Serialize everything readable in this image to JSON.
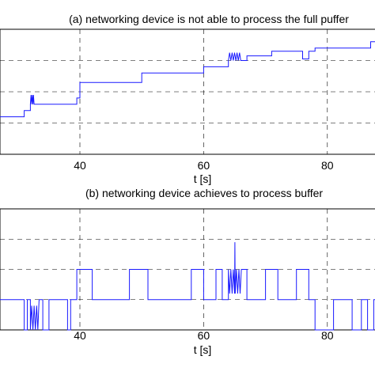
{
  "chart_data": [
    {
      "type": "line",
      "title": "(a) networking device is not able to process the full puffer",
      "xlabel": "t [s]",
      "ylabel": "",
      "xlim": [
        25,
        90
      ],
      "ylim": [
        0,
        4
      ],
      "x_ticks": [
        40,
        60,
        80
      ],
      "y_grid": [
        1,
        2,
        3
      ],
      "grid": true,
      "series": [
        {
          "points": [
            [
              25,
              1.2
            ],
            [
              31,
              1.2
            ],
            [
              31,
              1.4
            ],
            [
              32,
              1.4
            ],
            [
              32,
              1.6
            ],
            [
              32.1,
              1.9
            ],
            [
              32.2,
              1.6
            ],
            [
              32.3,
              1.9
            ],
            [
              32.4,
              1.6
            ],
            [
              32.5,
              1.9
            ],
            [
              32.6,
              1.6
            ],
            [
              39.5,
              1.6
            ],
            [
              39.5,
              1.8
            ],
            [
              40,
              1.8
            ],
            [
              40,
              2.3
            ],
            [
              50,
              2.3
            ],
            [
              50,
              2.6
            ],
            [
              60,
              2.6
            ],
            [
              60,
              2.8
            ],
            [
              64,
              2.8
            ],
            [
              64,
              3.0
            ],
            [
              64.2,
              3.25
            ],
            [
              64.4,
              3.0
            ],
            [
              64.6,
              3.25
            ],
            [
              64.8,
              3.0
            ],
            [
              65,
              3.25
            ],
            [
              65.2,
              3.0
            ],
            [
              65.4,
              3.25
            ],
            [
              65.6,
              3.0
            ],
            [
              65.8,
              3.25
            ],
            [
              66,
              3.0
            ],
            [
              67,
              3.0
            ],
            [
              67,
              3.15
            ],
            [
              71,
              3.15
            ],
            [
              71,
              3.3
            ],
            [
              76,
              3.3
            ],
            [
              76,
              3.05
            ],
            [
              77,
              3.05
            ],
            [
              77,
              3.3
            ],
            [
              78,
              3.3
            ],
            [
              78,
              3.4
            ],
            [
              87,
              3.4
            ],
            [
              87,
              3.6
            ],
            [
              90,
              3.6
            ]
          ]
        }
      ]
    },
    {
      "type": "line",
      "title": "(b) networking device achieves to process buffer",
      "xlabel": "t [s]",
      "ylabel": "",
      "xlim": [
        25,
        90
      ],
      "ylim": [
        0,
        4
      ],
      "x_ticks": [
        40,
        60,
        80
      ],
      "y_grid": [
        1,
        2,
        3
      ],
      "grid": true,
      "series": [
        {
          "points": [
            [
              25,
              1
            ],
            [
              25.5,
              1
            ],
            [
              25.5,
              0
            ],
            [
              27,
              0
            ],
            [
              27,
              1
            ],
            [
              31,
              1
            ],
            [
              31,
              0
            ],
            [
              31.5,
              0
            ],
            [
              31.5,
              1
            ],
            [
              32,
              1
            ],
            [
              32,
              0
            ],
            [
              32.2,
              0.8
            ],
            [
              32.4,
              0
            ],
            [
              32.6,
              0.8
            ],
            [
              32.8,
              0
            ],
            [
              33,
              0.8
            ],
            [
              33.2,
              0
            ],
            [
              33.4,
              1
            ],
            [
              34,
              1
            ],
            [
              34,
              0
            ],
            [
              35,
              0
            ],
            [
              35,
              1
            ],
            [
              38,
              1
            ],
            [
              38,
              0
            ],
            [
              38.5,
              0
            ],
            [
              38.5,
              1
            ],
            [
              39.5,
              1
            ],
            [
              39.5,
              2
            ],
            [
              42,
              2
            ],
            [
              42,
              1
            ],
            [
              48,
              1
            ],
            [
              48,
              2
            ],
            [
              51,
              2
            ],
            [
              51,
              1
            ],
            [
              58,
              1
            ],
            [
              58,
              2
            ],
            [
              60,
              2
            ],
            [
              60,
              1
            ],
            [
              62,
              1
            ],
            [
              62,
              2
            ],
            [
              63,
              2
            ],
            [
              63,
              1
            ],
            [
              64,
              1
            ],
            [
              64,
              2
            ],
            [
              64.2,
              1.2
            ],
            [
              64.4,
              2
            ],
            [
              64.6,
              1.2
            ],
            [
              64.8,
              2
            ],
            [
              65,
              1.2
            ],
            [
              65.05,
              2.9
            ],
            [
              65.1,
              1.2
            ],
            [
              65.3,
              2
            ],
            [
              65.5,
              1.2
            ],
            [
              65.7,
              2
            ],
            [
              65.9,
              1.2
            ],
            [
              66.1,
              2
            ],
            [
              67,
              2
            ],
            [
              67,
              1
            ],
            [
              70,
              1
            ],
            [
              70,
              2
            ],
            [
              72,
              2
            ],
            [
              72,
              1
            ],
            [
              75,
              1
            ],
            [
              75,
              2
            ],
            [
              77,
              2
            ],
            [
              77,
              1
            ],
            [
              78,
              1
            ],
            [
              78,
              0
            ],
            [
              81,
              0
            ],
            [
              81,
              1
            ],
            [
              84,
              1
            ],
            [
              84,
              0
            ],
            [
              85.5,
              0
            ],
            [
              85.5,
              1
            ],
            [
              86.5,
              1
            ],
            [
              86.5,
              0
            ],
            [
              87.5,
              0
            ],
            [
              87.5,
              1
            ],
            [
              89,
              1
            ],
            [
              89,
              0
            ],
            [
              90,
              0
            ]
          ]
        }
      ]
    }
  ]
}
